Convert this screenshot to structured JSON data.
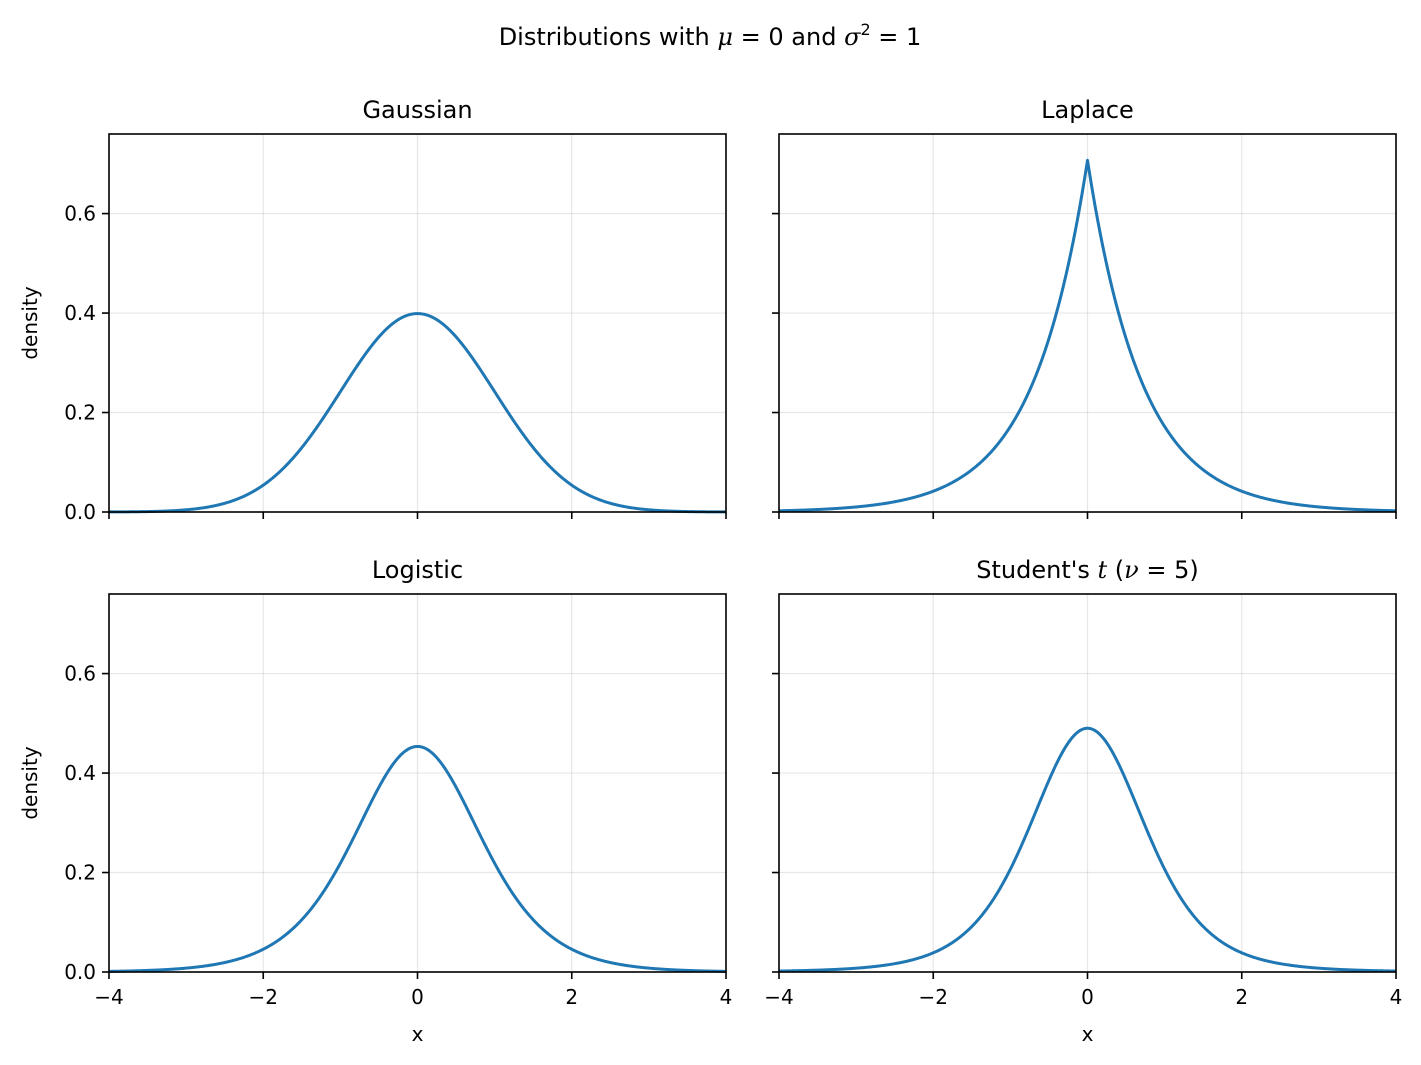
{
  "figure": {
    "suptitle": {
      "prefix": "Distributions with ",
      "mu_symbol": "μ",
      "mu_eq": " = 0",
      "middle": " and ",
      "sigma_symbol": "σ",
      "sigma_exp": "2",
      "sigma_eq": " = 1"
    }
  },
  "chart_data": [
    {
      "type": "line",
      "title": "Gaussian",
      "xlabel": "",
      "ylabel": "density",
      "xlim": [
        -4,
        4
      ],
      "ylim": [
        0,
        0.76
      ],
      "xticks": [
        -4,
        -2,
        0,
        2,
        4
      ],
      "yticks": [
        0.0,
        0.2,
        0.4,
        0.6
      ],
      "show_xticklabels": false,
      "show_yticklabels": true,
      "grid": true,
      "line_color": "#1f77b4",
      "distribution": "normal",
      "peak": 0.399,
      "series": [
        {
          "x": [
            -4,
            -3.5,
            -3,
            -2.5,
            -2,
            -1.5,
            -1,
            -0.5,
            0,
            0.5,
            1,
            1.5,
            2,
            2.5,
            3,
            3.5,
            4
          ],
          "values": [
            0.0001,
            0.0009,
            0.0044,
            0.0175,
            0.054,
            0.1295,
            0.242,
            0.3521,
            0.3989,
            0.3521,
            0.242,
            0.1295,
            0.054,
            0.0175,
            0.0044,
            0.0009,
            0.0001
          ]
        }
      ]
    },
    {
      "type": "line",
      "title": "Laplace",
      "xlabel": "",
      "ylabel": "",
      "xlim": [
        -4,
        4
      ],
      "ylim": [
        0,
        0.76
      ],
      "xticks": [
        -4,
        -2,
        0,
        2,
        4
      ],
      "yticks": [
        0.0,
        0.2,
        0.4,
        0.6
      ],
      "show_xticklabels": false,
      "show_yticklabels": false,
      "grid": true,
      "line_color": "#1f77b4",
      "distribution": "laplace",
      "peak": 0.707,
      "series": [
        {
          "x": [
            -4,
            -3,
            -2,
            -1,
            -0.5,
            0,
            0.5,
            1,
            2,
            3,
            4
          ],
          "values": [
            0.0025,
            0.0101,
            0.0419,
            0.172,
            0.349,
            0.7071,
            0.349,
            0.172,
            0.0419,
            0.0101,
            0.0025
          ]
        }
      ]
    },
    {
      "type": "line",
      "title": "Logistic",
      "xlabel": "x",
      "ylabel": "density",
      "xlim": [
        -4,
        4
      ],
      "ylim": [
        0,
        0.76
      ],
      "xticks": [
        -4,
        -2,
        0,
        2,
        4
      ],
      "yticks": [
        0.0,
        0.2,
        0.4,
        0.6
      ],
      "show_xticklabels": true,
      "show_yticklabels": true,
      "grid": true,
      "line_color": "#1f77b4",
      "distribution": "logistic",
      "peak": 0.453,
      "series": [
        {
          "x": [
            -4,
            -3,
            -2,
            -1,
            -0.5,
            0,
            0.5,
            1,
            2,
            3,
            4
          ],
          "values": [
            0.0029,
            0.0135,
            0.0474,
            0.2234,
            0.3898,
            0.4534,
            0.3898,
            0.2234,
            0.0474,
            0.0135,
            0.0029
          ]
        }
      ]
    },
    {
      "type": "line",
      "title": "Student's ",
      "title_math": "t",
      "title_suffix_open": " (",
      "title_nu": "ν",
      "title_nu_eq": " = 5",
      "title_suffix_close": ")",
      "xlabel": "x",
      "ylabel": "",
      "xlim": [
        -4,
        4
      ],
      "ylim": [
        0,
        0.76
      ],
      "xticks": [
        -4,
        -2,
        0,
        2,
        4
      ],
      "yticks": [
        0.0,
        0.2,
        0.4,
        0.6
      ],
      "show_xticklabels": true,
      "show_yticklabels": false,
      "grid": true,
      "line_color": "#1f77b4",
      "distribution": "student_t",
      "df": 5,
      "peak": 0.49,
      "series": [
        {
          "x": [
            -4,
            -3,
            -2,
            -1,
            -0.5,
            0,
            0.5,
            1,
            2,
            3,
            4
          ],
          "values": [
            0.0025,
            0.0101,
            0.0388,
            0.2274,
            0.4125,
            0.4901,
            0.4125,
            0.2274,
            0.0388,
            0.0101,
            0.0025
          ]
        }
      ]
    }
  ]
}
